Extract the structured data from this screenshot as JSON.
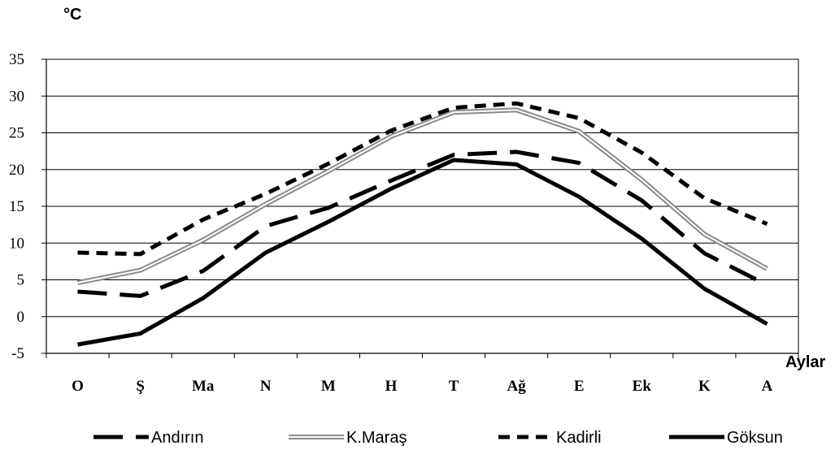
{
  "chart_data": {
    "type": "line",
    "ylabel": "°C",
    "xlabel": "Aylar",
    "categories": [
      "O",
      "Ş",
      "Ma",
      "N",
      "M",
      "H",
      "T",
      "Ağ",
      "E",
      "Ek",
      "K",
      "A"
    ],
    "ylim": [
      -5,
      35
    ],
    "yticks": [
      "35",
      "30",
      "25",
      "20",
      "15",
      "10",
      "5",
      "0",
      "-5"
    ],
    "grid": true,
    "legend_position": "bottom",
    "series": [
      {
        "name": "Andırın",
        "style": "long-dash",
        "color": "#000000",
        "values": [
          3.4,
          2.8,
          6.2,
          12.3,
          14.8,
          18.5,
          22.0,
          22.4,
          20.9,
          15.8,
          8.6,
          4.3
        ]
      },
      {
        "name": "K.Maraş",
        "style": "double-gray",
        "color": "#9a9a9a",
        "values": [
          4.6,
          6.3,
          10.4,
          15.3,
          19.8,
          24.5,
          27.8,
          28.1,
          25.2,
          18.6,
          11.2,
          6.5
        ]
      },
      {
        "name": "Kadirli",
        "style": "short-dash",
        "color": "#000000",
        "values": [
          8.7,
          8.5,
          13.2,
          16.7,
          20.8,
          25.3,
          28.4,
          29.0,
          27.0,
          22.3,
          16.1,
          12.6
        ]
      },
      {
        "name": "Göksun",
        "style": "solid",
        "color": "#000000",
        "values": [
          -3.8,
          -2.3,
          2.5,
          8.7,
          12.9,
          17.4,
          21.3,
          20.7,
          16.3,
          10.6,
          3.8,
          -1.0
        ]
      }
    ]
  }
}
